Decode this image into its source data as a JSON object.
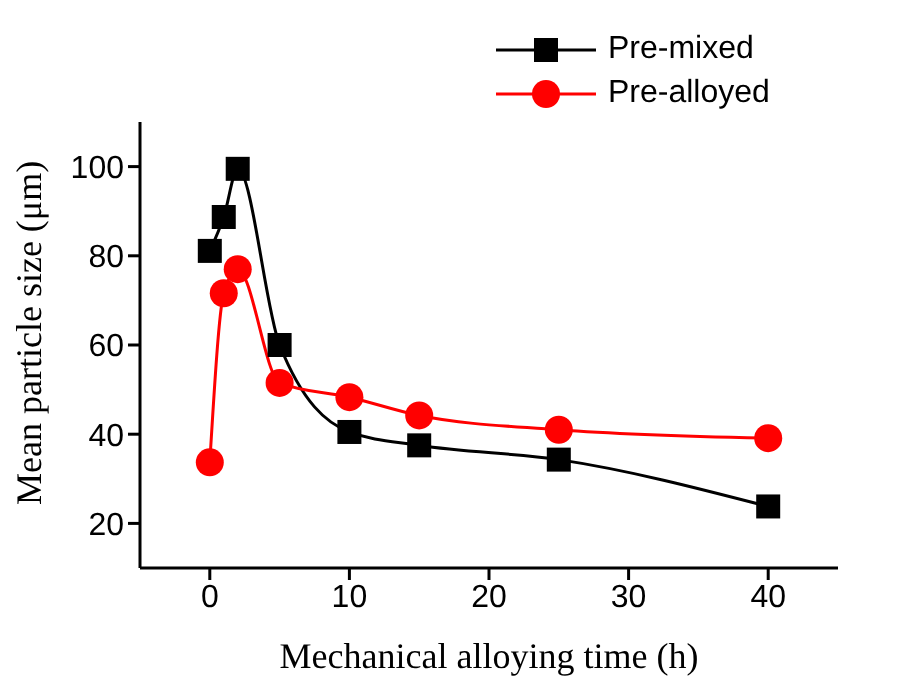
{
  "chart_data": {
    "type": "line",
    "xlabel": "Mechanical alloying time (h)",
    "ylabel": "Mean particle size (μm)",
    "x": [
      0,
      1,
      2,
      5,
      10,
      15,
      25,
      40
    ],
    "series": [
      {
        "name": "Pre-mixed",
        "color": "#000000",
        "marker": "square",
        "values": [
          81.1,
          88.7,
          99.5,
          60,
          40.5,
          37.5,
          34.3,
          23.8
        ]
      },
      {
        "name": "Pre-alloyed",
        "color": "#ff0000",
        "marker": "circle",
        "values": [
          33.7,
          71.6,
          77,
          51.5,
          48.3,
          44.2,
          41,
          39.1
        ]
      }
    ],
    "xlim": [
      -5,
      45
    ],
    "xticks": [
      0,
      10,
      20,
      30,
      40
    ],
    "ylim": [
      10,
      110
    ],
    "yticks": [
      20,
      40,
      60,
      80,
      100
    ],
    "grid": false,
    "legend": "top right"
  }
}
